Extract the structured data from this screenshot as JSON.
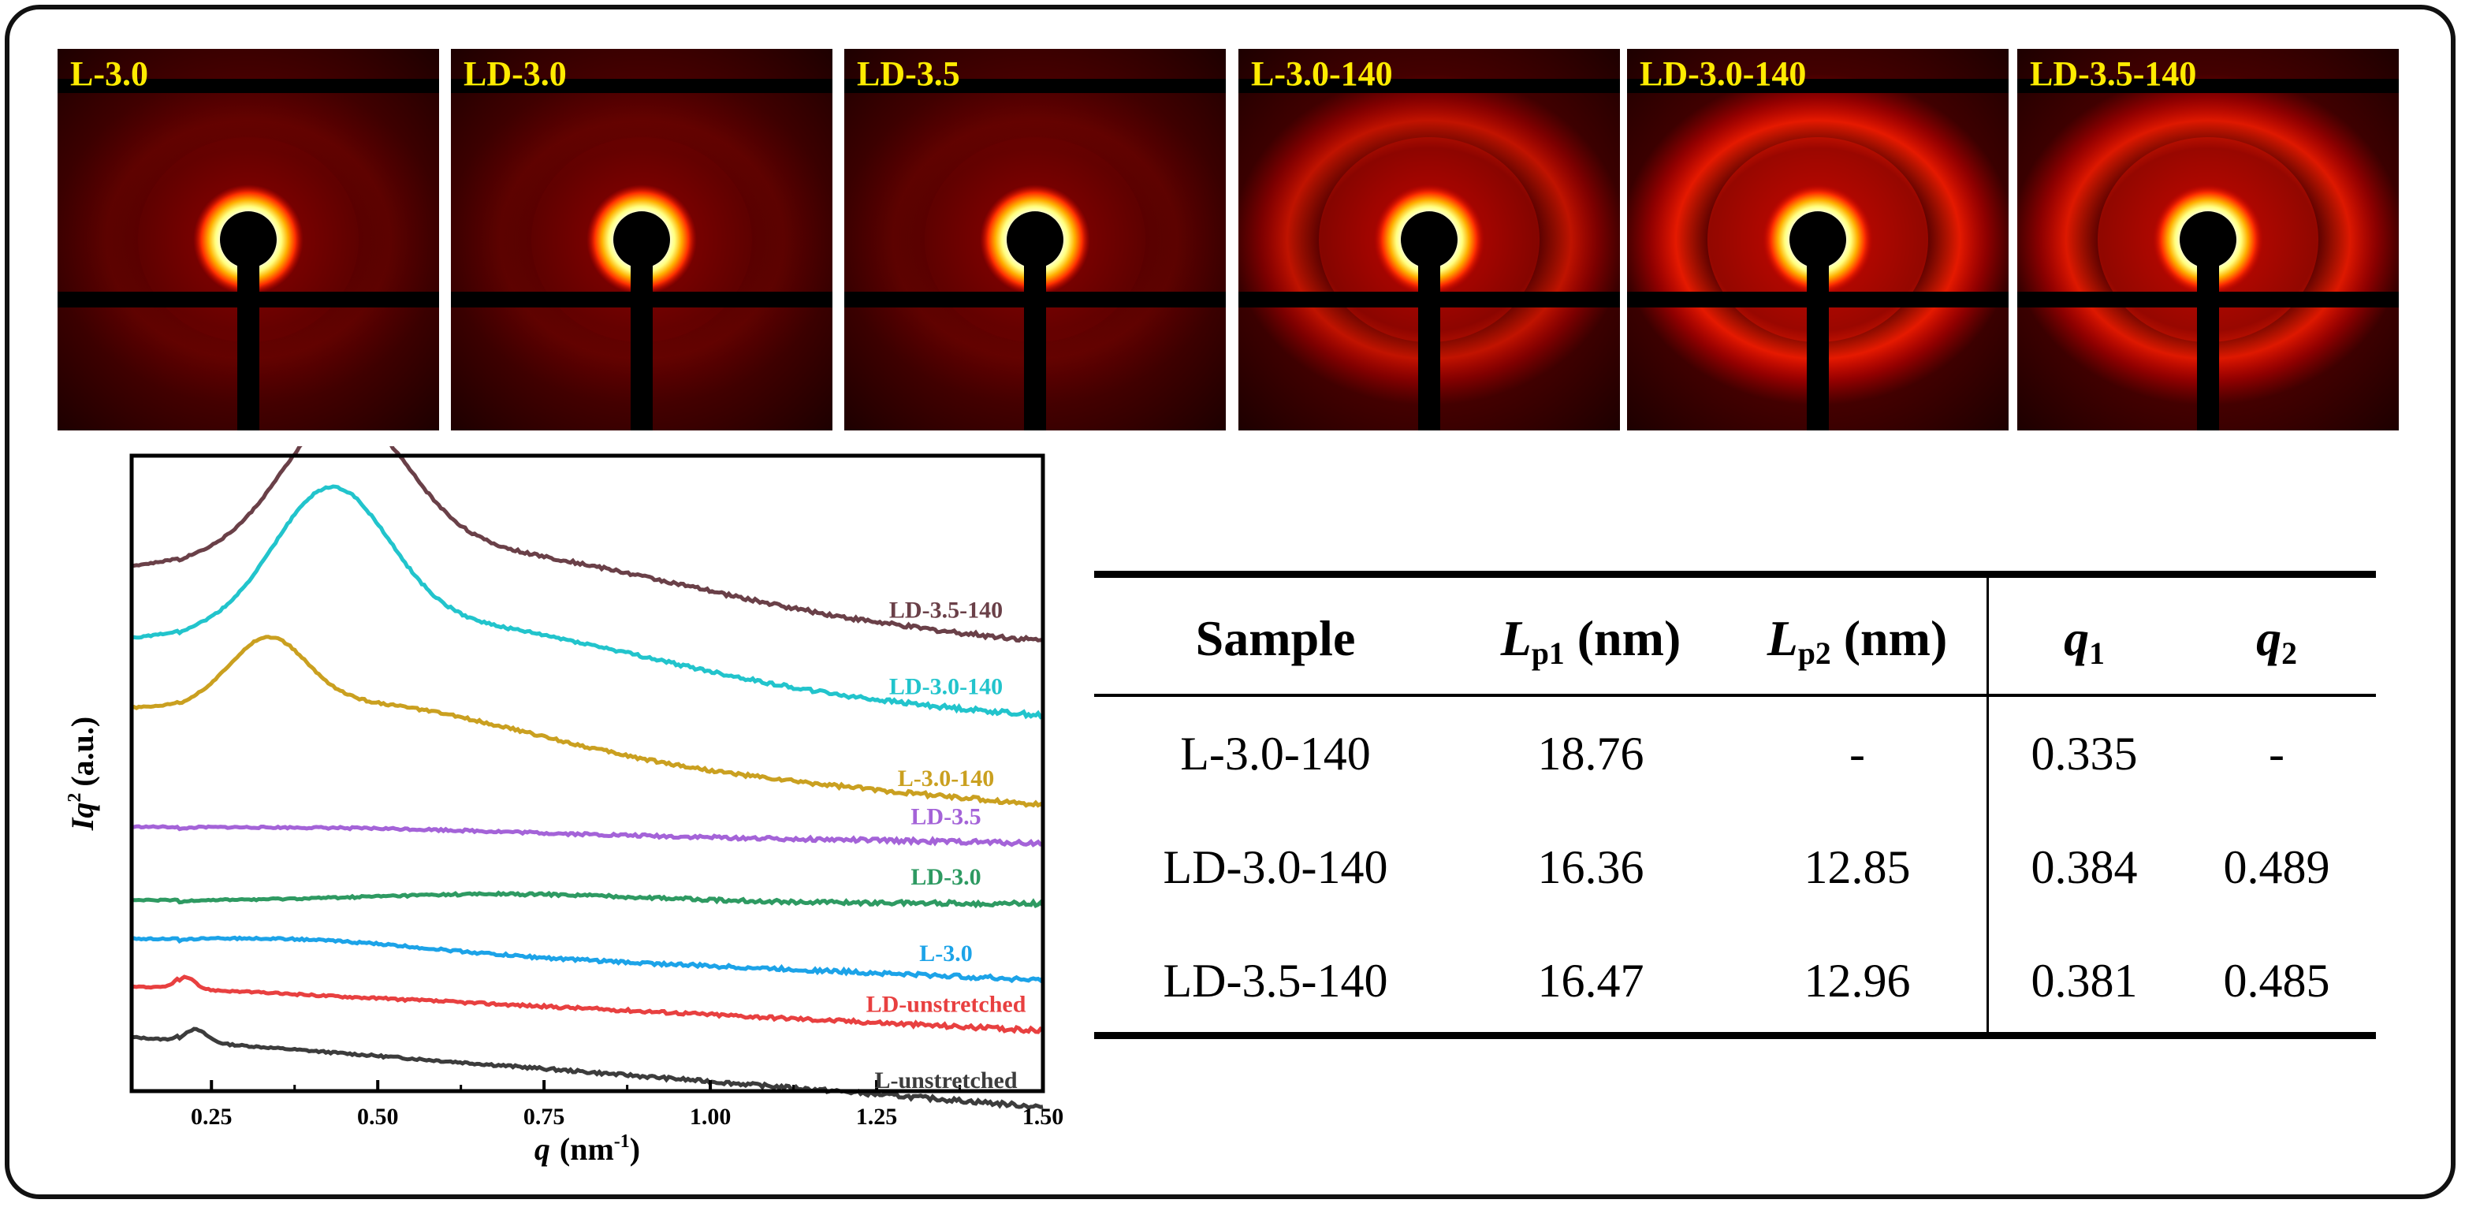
{
  "saxs_panels": [
    {
      "label": "L-3.0",
      "ring": 0.1
    },
    {
      "label": "LD-3.0",
      "ring": 0.1
    },
    {
      "label": "LD-3.5",
      "ring": 0.1
    },
    {
      "label": "L-3.0-140",
      "ring": 0.75
    },
    {
      "label": "LD-3.0-140",
      "ring": 1.0
    },
    {
      "label": "LD-3.5-140",
      "ring": 0.95
    }
  ],
  "chart_data": {
    "type": "line",
    "xlabel": "q",
    "xlabel_unit": "(nm",
    "xlabel_exp": "-1",
    "xlabel_close": ")",
    "ylabel": "Iq",
    "ylabel_exp": "2",
    "ylabel_unit": "(a.u.)",
    "xlim": [
      0.13,
      1.5
    ],
    "xticks": [
      "0.25",
      "0.50",
      "0.75",
      "1.00",
      "1.25",
      "1.50"
    ],
    "series": [
      {
        "name": "L-unstretched",
        "color": "#3c3c3c",
        "base": 0.85,
        "end": -0.25,
        "peak_q": 0.225,
        "peak_h": 0.2,
        "peak_w": 0.025,
        "hump_h": 0,
        "hump_w": 0.3
      },
      {
        "name": "LD-unstretched",
        "color": "#e84040",
        "base": 1.65,
        "end": 0.95,
        "peak_q": 0.21,
        "peak_h": 0.2,
        "peak_w": 0.02,
        "hump_h": 0,
        "hump_w": 0.3
      },
      {
        "name": "L-3.0",
        "color": "#1ca3e8",
        "base": 2.35,
        "end": 1.75,
        "peak_q": 0.4,
        "peak_h": 0.15,
        "peak_w": 0.25,
        "hump_h": 0,
        "hump_w": 0.3
      },
      {
        "name": "LD-3.0",
        "color": "#2e9a62",
        "base": 3.0,
        "end": 2.95,
        "peak_q": 0.7,
        "peak_h": 0.12,
        "peak_w": 0.3,
        "hump_h": 0,
        "hump_w": 0.3
      },
      {
        "name": "LD-3.5",
        "color": "#a463d8",
        "base": 4.15,
        "end": 3.9,
        "peak_q": 0.5,
        "peak_h": 0.05,
        "peak_w": 0.3,
        "hump_h": 0,
        "hump_w": 0.3
      },
      {
        "name": "L-3.0-140",
        "color": "#caa020",
        "base": 5.8,
        "end": 4.5,
        "peak_q": 0.335,
        "peak_h": 1.0,
        "peak_w": 0.08,
        "hump_h": 0.65,
        "hump_w": 0.35
      },
      {
        "name": "LD-3.0-140",
        "color": "#22c4cc",
        "base": 6.8,
        "end": 5.9,
        "peak_q": 0.43,
        "peak_h": 2.1,
        "peak_w": 0.12,
        "hump_h": 0.9,
        "hump_w": 0.45
      },
      {
        "name": "LD-3.5-140",
        "color": "#6a4048",
        "base": 7.85,
        "end": 7.05,
        "peak_q": 0.45,
        "peak_h": 2.1,
        "peak_w": 0.13,
        "hump_h": 1.0,
        "hump_w": 0.5
      }
    ]
  },
  "table": {
    "headers": {
      "sample": "Sample",
      "lp_symbol": "L",
      "lp1_sub": "p1",
      "lp2_sub": "p2",
      "unit": "(nm)",
      "q_symbol": "q",
      "q1_sub": "1",
      "q2_sub": "2"
    },
    "rows": [
      {
        "sample": "L-3.0-140",
        "lp1": "18.76",
        "lp2": "-",
        "q1": "0.335",
        "q2": "-"
      },
      {
        "sample": "LD-3.0-140",
        "lp1": "16.36",
        "lp2": "12.85",
        "q1": "0.384",
        "q2": "0.489"
      },
      {
        "sample": "LD-3.5-140",
        "lp1": "16.47",
        "lp2": "12.96",
        "q1": "0.381",
        "q2": "0.485"
      }
    ]
  }
}
